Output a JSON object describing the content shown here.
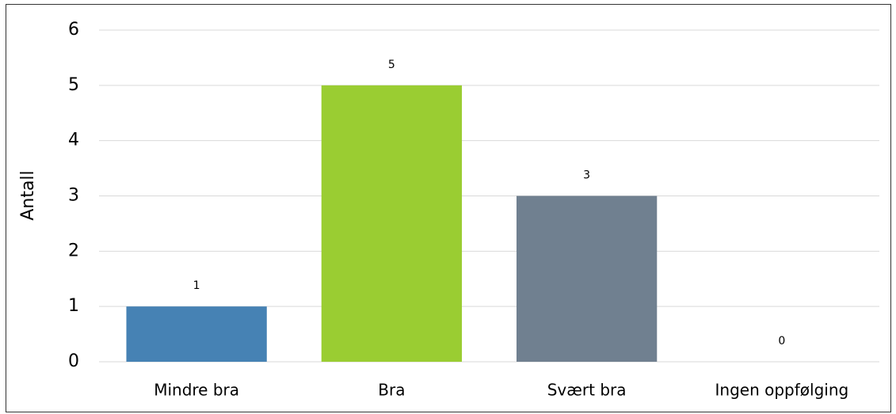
{
  "chart_data": {
    "type": "bar",
    "y_label": "Antall",
    "categories": [
      "Mindre bra",
      "Bra",
      "Svært bra",
      "Ingen oppfølging"
    ],
    "values": [
      1,
      5,
      3,
      0
    ],
    "colors": [
      "#4682b4",
      "#9acd32",
      "#708090"
    ],
    "ylim": [
      0,
      6
    ],
    "yticks": [
      0,
      1,
      2,
      3,
      4,
      5,
      6
    ],
    "grid": true
  }
}
